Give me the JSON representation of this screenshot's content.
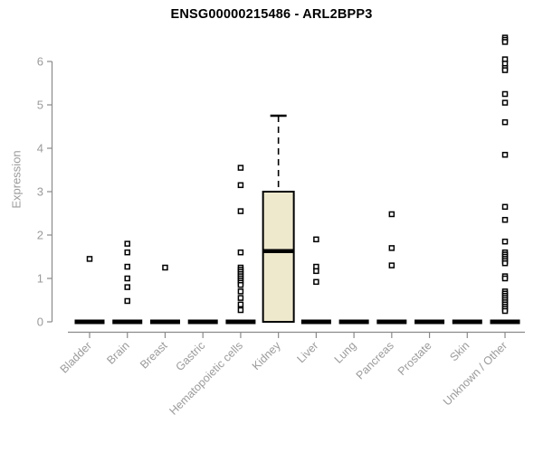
{
  "chart_data": {
    "type": "boxplot",
    "title": "ENSG00000215486 - ARL2BPP3",
    "ylabel": "Expression",
    "xlabel": "",
    "ylim": [
      0,
      6.6
    ],
    "yticks": [
      0,
      1,
      2,
      3,
      4,
      5,
      6
    ],
    "grid": false,
    "legend": false,
    "categories": [
      "Bladder",
      "Brain",
      "Breast",
      "Gastric",
      "Hematopoietic cells",
      "Kidney",
      "Liver",
      "Lung",
      "Pancreas",
      "Prostate",
      "Skin",
      "Unknown / Other"
    ],
    "boxes": [
      {
        "label": "Bladder",
        "q1": 0,
        "median": 0,
        "q3": 0,
        "whisker_low": 0,
        "whisker_high": 0,
        "outliers": [
          1.45
        ]
      },
      {
        "label": "Brain",
        "q1": 0,
        "median": 0,
        "q3": 0,
        "whisker_low": 0,
        "whisker_high": 0,
        "outliers": [
          1.8,
          1.6,
          1.27,
          1.0,
          0.8,
          0.48
        ]
      },
      {
        "label": "Breast",
        "q1": 0,
        "median": 0,
        "q3": 0,
        "whisker_low": 0,
        "whisker_high": 0,
        "outliers": [
          1.25
        ]
      },
      {
        "label": "Gastric",
        "q1": 0,
        "median": 0,
        "q3": 0,
        "whisker_low": 0,
        "whisker_high": 0,
        "outliers": []
      },
      {
        "label": "Hematopoietic cells",
        "q1": 0,
        "median": 0,
        "q3": 0,
        "whisker_low": 0,
        "whisker_high": 0,
        "outliers": [
          3.55,
          3.15,
          2.55,
          1.6,
          1.25,
          1.2,
          1.15,
          1.1,
          1.05,
          1.0,
          0.95,
          0.9,
          0.85,
          0.7,
          0.55,
          0.4,
          0.27
        ]
      },
      {
        "label": "Kidney",
        "q1": 0,
        "median": 1.63,
        "q3": 3.0,
        "whisker_low": 0,
        "whisker_high": 4.75,
        "outliers": []
      },
      {
        "label": "Liver",
        "q1": 0,
        "median": 0,
        "q3": 0,
        "whisker_low": 0,
        "whisker_high": 0,
        "outliers": [
          1.9,
          1.27,
          1.17,
          0.92
        ]
      },
      {
        "label": "Lung",
        "q1": 0,
        "median": 0,
        "q3": 0,
        "whisker_low": 0,
        "whisker_high": 0,
        "outliers": []
      },
      {
        "label": "Pancreas",
        "q1": 0,
        "median": 0,
        "q3": 0,
        "whisker_low": 0,
        "whisker_high": 0,
        "outliers": [
          2.48,
          1.7,
          1.3
        ]
      },
      {
        "label": "Prostate",
        "q1": 0,
        "median": 0,
        "q3": 0,
        "whisker_low": 0,
        "whisker_high": 0,
        "outliers": []
      },
      {
        "label": "Skin",
        "q1": 0,
        "median": 0,
        "q3": 0,
        "whisker_low": 0,
        "whisker_high": 0,
        "outliers": []
      },
      {
        "label": "Unknown / Other",
        "q1": 0,
        "median": 0,
        "q3": 0,
        "whisker_low": 0,
        "whisker_high": 0,
        "outliers": [
          6.55,
          6.5,
          6.45,
          6.05,
          5.95,
          5.85,
          5.8,
          5.25,
          5.05,
          4.6,
          3.85,
          2.65,
          2.35,
          1.85,
          1.6,
          1.55,
          1.5,
          1.45,
          1.4,
          1.35,
          1.05,
          1.0,
          0.7,
          0.65,
          0.6,
          0.55,
          0.5,
          0.45,
          0.4,
          0.35,
          0.3,
          0.25
        ]
      }
    ],
    "colors": {
      "box_fill": "#eee8cd",
      "box_stroke": "#000000",
      "marker": "#000000",
      "axis": "#8a8a8a",
      "tick_text": "#9b9b9b",
      "title_text": "#000000"
    }
  }
}
